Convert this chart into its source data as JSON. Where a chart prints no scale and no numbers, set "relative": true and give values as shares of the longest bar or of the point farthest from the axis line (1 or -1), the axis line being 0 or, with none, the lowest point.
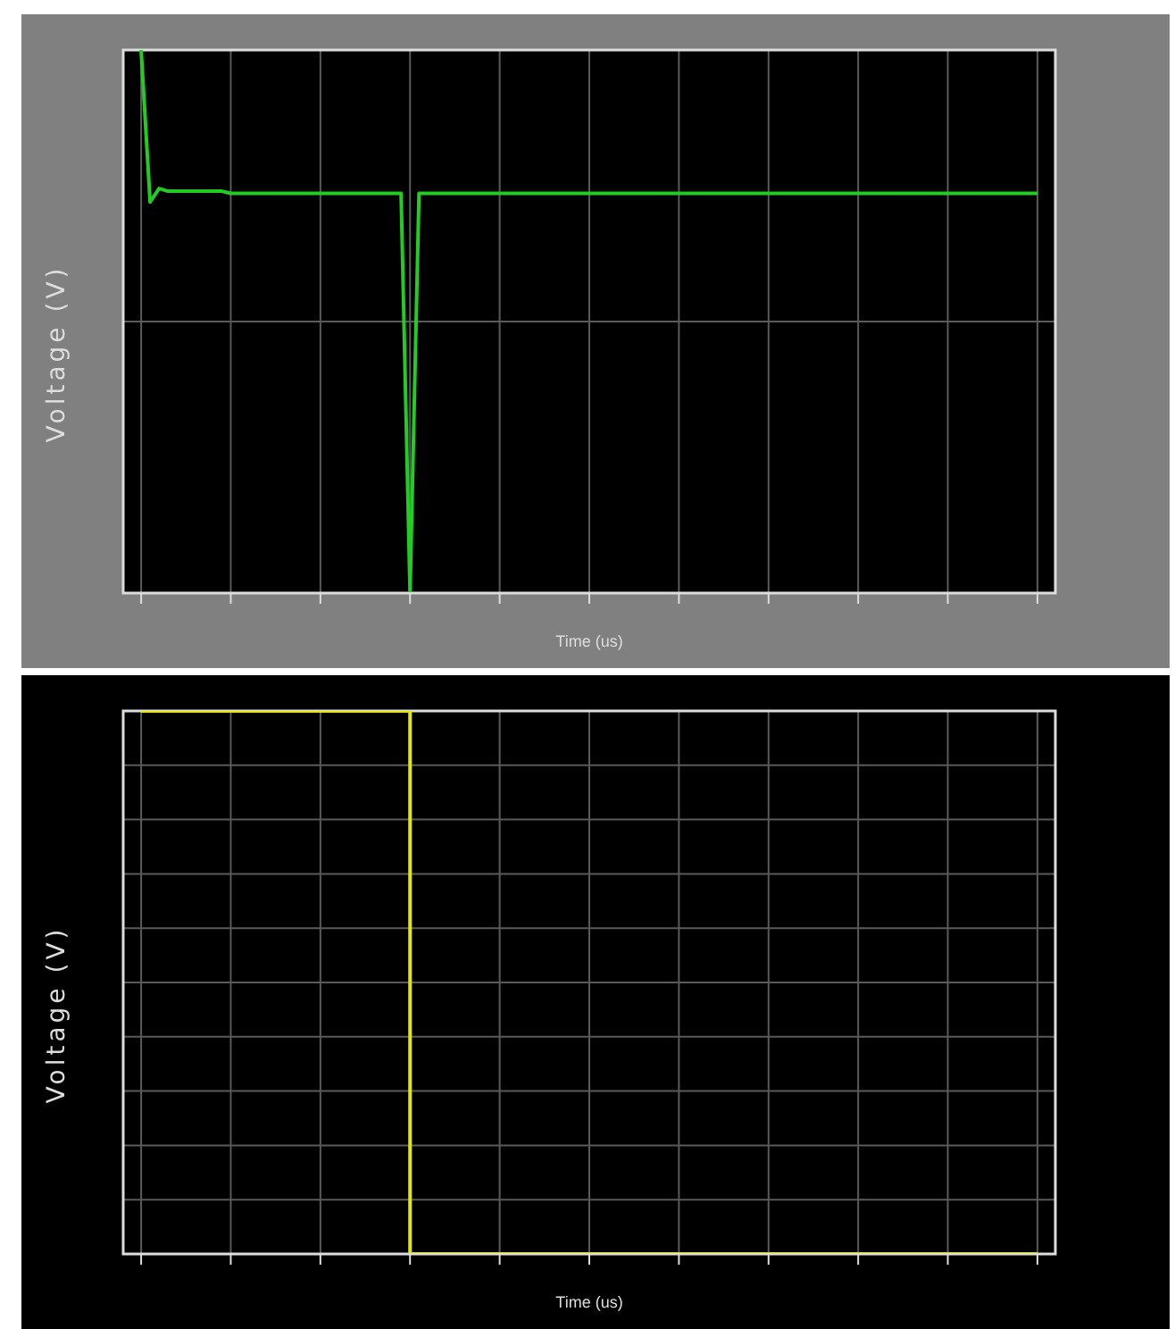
{
  "chart_data": [
    {
      "type": "line",
      "relative": true,
      "xlabel": "Time (us)",
      "ylabel": "Voltage (V)",
      "grid": true,
      "marker": "none",
      "line_style": "solid",
      "categories": [
        null,
        null,
        null,
        null,
        null,
        null,
        null,
        null,
        null,
        null,
        null,
        null,
        null,
        null,
        null,
        null,
        null,
        null,
        null,
        null,
        null,
        null,
        null,
        null,
        null,
        null,
        null,
        null,
        null,
        null,
        null,
        null,
        null,
        null,
        null,
        null,
        null,
        null,
        null,
        null,
        null,
        null,
        null,
        null,
        null,
        null,
        null,
        null,
        null,
        null,
        null,
        null,
        null,
        null,
        null,
        null,
        null,
        null,
        null,
        null,
        null,
        null,
        null,
        null,
        null,
        null,
        null,
        null,
        null,
        null,
        null,
        null,
        null,
        null,
        null,
        null,
        null,
        null,
        null,
        null,
        null,
        null,
        null,
        null,
        null,
        null,
        null,
        null,
        null,
        null,
        null,
        null,
        null,
        null,
        null,
        null,
        null,
        null,
        null,
        null,
        null
      ],
      "series": [
        {
          "color": "#22cc22",
          "values": [
            1,
            0.72,
            0.745,
            0.74,
            0.74,
            0.74,
            0.74,
            0.74,
            0.74,
            0.74,
            0.736,
            0.736,
            0.736,
            0.736,
            0.736,
            0.736,
            0.736,
            0.736,
            0.736,
            0.736,
            0.736,
            0.736,
            0.736,
            0.736,
            0.736,
            0.736,
            0.736,
            0.736,
            0.736,
            0.736,
            0,
            0.736,
            0.736,
            0.736,
            0.736,
            0.736,
            0.736,
            0.736,
            0.736,
            0.736,
            0.736,
            0.736,
            0.736,
            0.736,
            0.736,
            0.736,
            0.736,
            0.736,
            0.736,
            0.736,
            0.736,
            0.736,
            0.736,
            0.736,
            0.736,
            0.736,
            0.736,
            0.736,
            0.736,
            0.736,
            0.736,
            0.736,
            0.736,
            0.736,
            0.736,
            0.736,
            0.736,
            0.736,
            0.736,
            0.736,
            0.736,
            0.736,
            0.736,
            0.736,
            0.736,
            0.736,
            0.736,
            0.736,
            0.736,
            0.736,
            0.736,
            0.736,
            0.736,
            0.736,
            0.736,
            0.736,
            0.736,
            0.736,
            0.736,
            0.736,
            0.736,
            0.736,
            0.736,
            0.736,
            0.736,
            0.736,
            0.736,
            0.736,
            0.736,
            0.736,
            0.736
          ]
        }
      ]
    },
    {
      "type": "step",
      "relative": true,
      "xlabel": "Time (us)",
      "ylabel": "Voltage (V)",
      "grid": true,
      "marker": "none",
      "line_style": "solid",
      "categories": [
        null,
        null,
        null,
        null,
        null,
        null,
        null,
        null,
        null,
        null,
        null,
        null,
        null,
        null,
        null,
        null,
        null,
        null,
        null,
        null,
        null,
        null,
        null,
        null,
        null,
        null,
        null,
        null,
        null,
        null,
        null,
        null,
        null,
        null,
        null,
        null,
        null,
        null,
        null,
        null,
        null,
        null,
        null,
        null,
        null,
        null,
        null,
        null,
        null,
        null,
        null,
        null,
        null,
        null,
        null,
        null,
        null,
        null,
        null,
        null,
        null,
        null,
        null,
        null,
        null,
        null,
        null,
        null,
        null,
        null,
        null,
        null,
        null,
        null,
        null,
        null,
        null,
        null,
        null,
        null,
        null,
        null,
        null,
        null,
        null,
        null,
        null,
        null,
        null,
        null,
        null,
        null,
        null,
        null,
        null,
        null,
        null,
        null,
        null,
        null,
        null
      ],
      "series": [
        {
          "color": "#e6e600",
          "values": [
            1,
            1,
            1,
            1,
            1,
            1,
            1,
            1,
            1,
            1,
            1,
            1,
            1,
            1,
            1,
            1,
            1,
            1,
            1,
            1,
            1,
            1,
            1,
            1,
            1,
            1,
            1,
            1,
            1,
            1,
            0,
            0,
            0,
            0,
            0,
            0,
            0,
            0,
            0,
            0,
            0,
            0,
            0,
            0,
            0,
            0,
            0,
            0,
            0,
            0,
            0,
            0,
            0,
            0,
            0,
            0,
            0,
            0,
            0,
            0,
            0,
            0,
            0,
            0,
            0,
            0,
            0,
            0,
            0,
            0,
            0,
            0,
            0,
            0,
            0,
            0,
            0,
            0,
            0,
            0,
            0,
            0,
            0,
            0,
            0,
            0,
            0,
            0,
            0,
            0,
            0,
            0,
            0,
            0,
            0,
            0,
            0,
            0,
            0,
            0,
            0
          ]
        }
      ]
    }
  ]
}
